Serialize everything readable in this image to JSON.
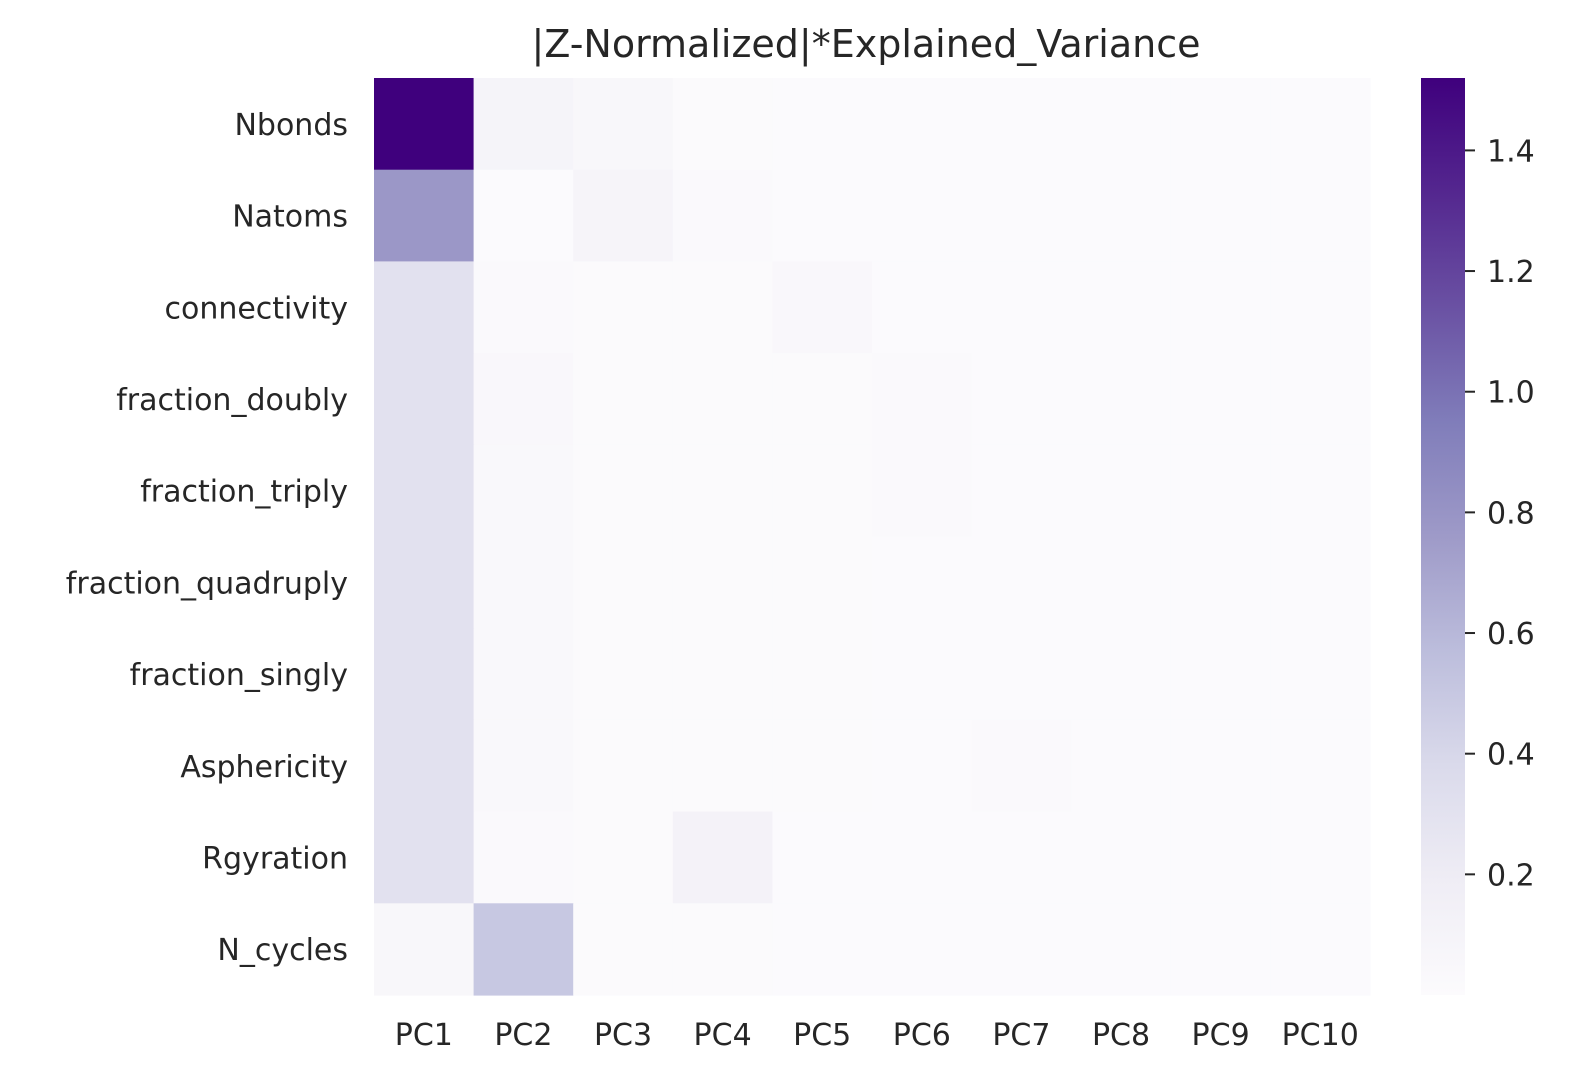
{
  "chart_data": {
    "type": "heatmap",
    "title": "|Z-Normalized|*Explained_Variance",
    "rows": [
      "Nbonds",
      "Natoms",
      "connectivity",
      "fraction_doubly",
      "fraction_triply",
      "fraction_quadruply",
      "fraction_singly",
      "Asphericity",
      "Rgyration",
      "N_cycles"
    ],
    "columns": [
      "PC1",
      "PC2",
      "PC3",
      "PC4",
      "PC5",
      "PC6",
      "PC7",
      "PC8",
      "PC9",
      "PC10"
    ],
    "values": [
      [
        1.52,
        0.1,
        0.06,
        0.02,
        0.01,
        0.01,
        0.01,
        0.01,
        0.01,
        0.01
      ],
      [
        0.78,
        0.01,
        0.09,
        0.03,
        0.01,
        0.01,
        0.01,
        0.01,
        0.01,
        0.01
      ],
      [
        0.31,
        0.03,
        0.02,
        0.02,
        0.05,
        0.01,
        0.01,
        0.01,
        0.01,
        0.01
      ],
      [
        0.31,
        0.05,
        0.02,
        0.02,
        0.02,
        0.03,
        0.01,
        0.01,
        0.01,
        0.01
      ],
      [
        0.31,
        0.04,
        0.02,
        0.02,
        0.02,
        0.03,
        0.01,
        0.01,
        0.01,
        0.01
      ],
      [
        0.31,
        0.04,
        0.02,
        0.02,
        0.02,
        0.01,
        0.01,
        0.01,
        0.01,
        0.01
      ],
      [
        0.31,
        0.04,
        0.02,
        0.02,
        0.02,
        0.01,
        0.01,
        0.01,
        0.01,
        0.01
      ],
      [
        0.31,
        0.04,
        0.02,
        0.02,
        0.02,
        0.01,
        0.03,
        0.01,
        0.01,
        0.01
      ],
      [
        0.31,
        0.03,
        0.02,
        0.12,
        0.01,
        0.01,
        0.01,
        0.01,
        0.01,
        0.01
      ],
      [
        0.06,
        0.5,
        0.02,
        0.02,
        0.01,
        0.01,
        0.01,
        0.01,
        0.01,
        0.01
      ]
    ],
    "colormap": "Purples",
    "vmin": 0.0,
    "vmax": 1.52,
    "colorbar_ticks": [
      0.2,
      0.4,
      0.6,
      0.8,
      1.0,
      1.2,
      1.4
    ],
    "colorbar_tick_labels": [
      "0.2",
      "0.4",
      "0.6",
      "0.8",
      "1.0",
      "1.2",
      "1.4"
    ]
  }
}
